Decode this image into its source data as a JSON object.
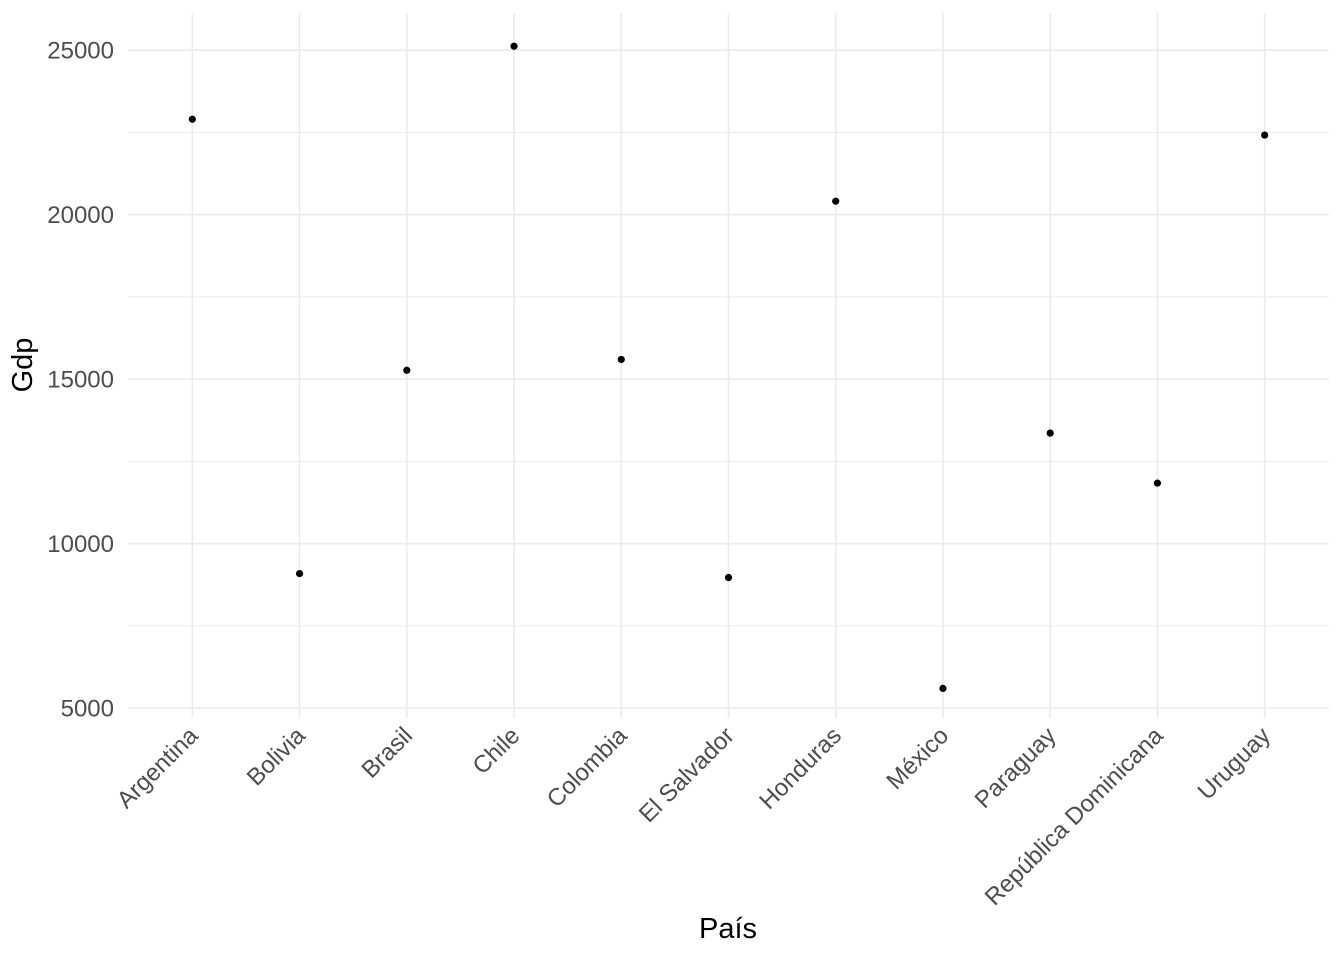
{
  "chart_data": {
    "type": "scatter",
    "title": "",
    "xlabel": "País",
    "ylabel": "Gdp",
    "categories": [
      "Argentina",
      "Bolivia",
      "Brasil",
      "Chile",
      "Colombia",
      "El Salvador",
      "Honduras",
      "México",
      "Paraguay",
      "República Dominicana",
      "Uruguay"
    ],
    "values": [
      22900,
      9090,
      15270,
      25120,
      15600,
      8970,
      20410,
      5600,
      13360,
      11840,
      22420
    ],
    "y_ticks": [
      5000,
      10000,
      15000,
      20000,
      25000
    ],
    "y_minor_ticks": [
      7500,
      12500,
      17500,
      22500
    ],
    "ylim": [
      4700,
      26130
    ],
    "grid": "on",
    "legend": "none",
    "x_label_angle_degrees": 45,
    "point_color": "#000000",
    "grid_color": "#EBEBEB",
    "axis_text_color": "#4D4D4D",
    "axis_title_color": "#000000",
    "background_color": "#FFFFFF"
  }
}
